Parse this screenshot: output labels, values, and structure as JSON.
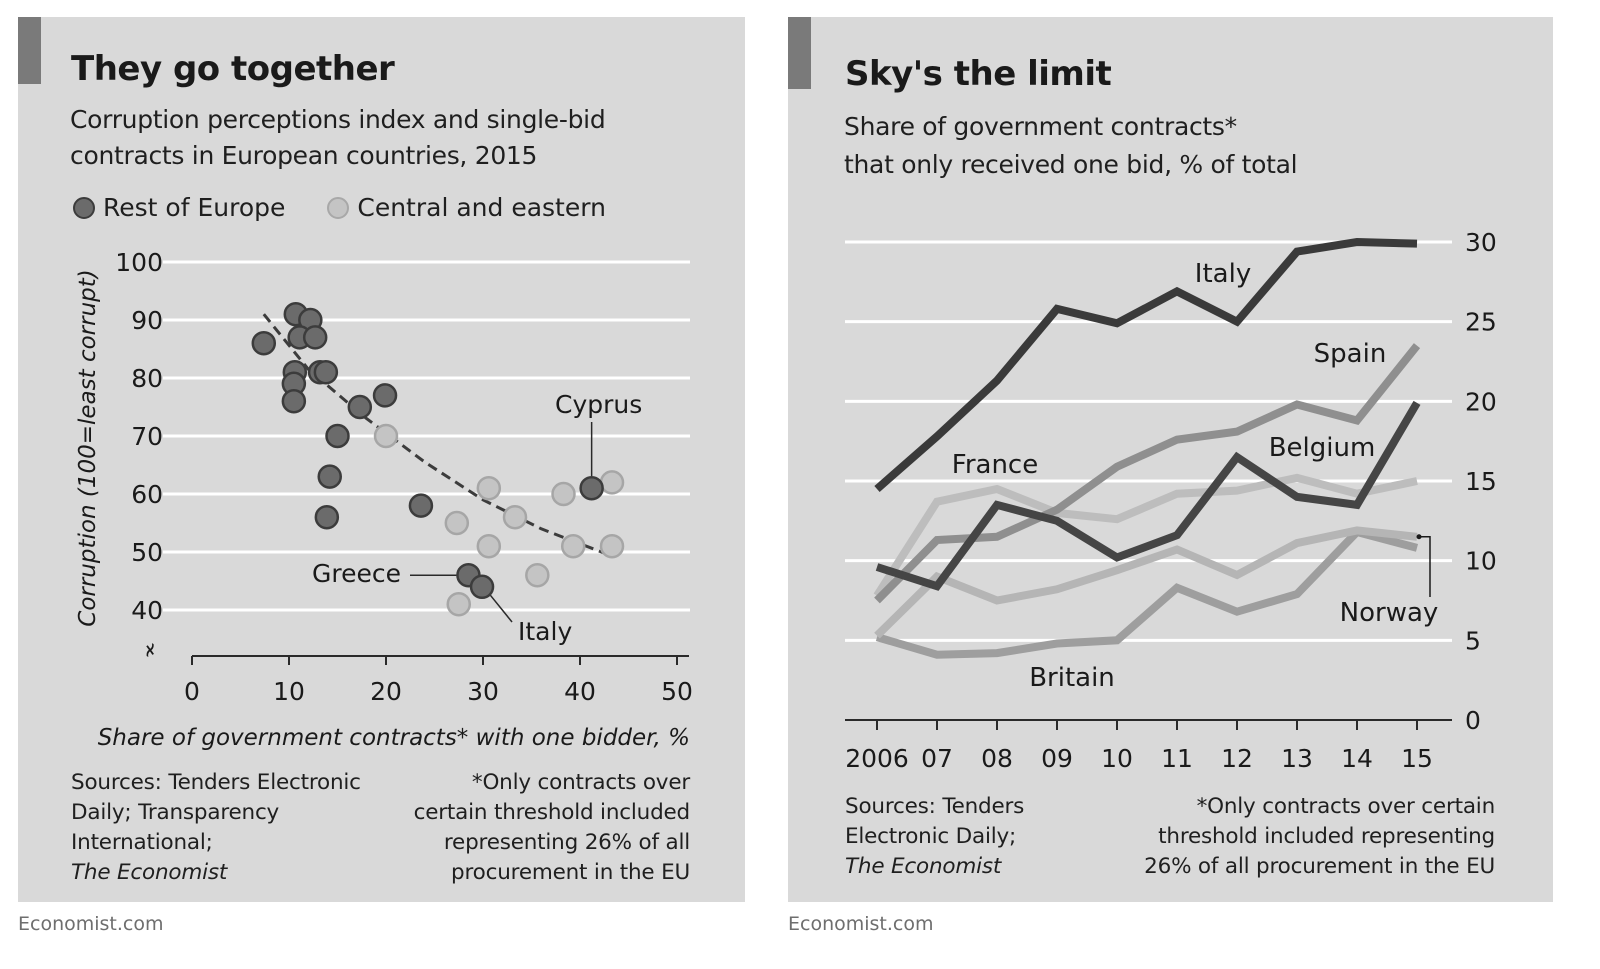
{
  "left": {
    "title": "They go together",
    "subtitle_lines": [
      "Corruption perceptions index and single-bid",
      "contracts in European countries, 2015"
    ],
    "legend": [
      {
        "label": "Rest of Europe",
        "color": "#6b6b6b"
      },
      {
        "label": "Central and eastern",
        "color": "#c4c4c4"
      }
    ],
    "sources_lines": [
      "Sources: Tenders Electronic",
      "Daily; Transparency",
      "International;"
    ],
    "sources_italic": "The Economist",
    "footnote_lines": [
      "*Only contracts over",
      "certain threshold included",
      "representing 26% of all",
      "procurement in the EU"
    ],
    "credit": "Economist.com"
  },
  "right": {
    "title": "Sky's the limit",
    "subtitle_lines": [
      "Share of government contracts*",
      "that only received one bid, % of total"
    ],
    "sources_lines": [
      "Sources: Tenders",
      "Electronic Daily;"
    ],
    "sources_italic": "The Economist",
    "footnote_lines": [
      "*Only contracts over certain",
      "threshold included representing",
      "26% of all procurement in the EU"
    ],
    "credit": "Economist.com"
  },
  "chart_data": [
    {
      "type": "scatter",
      "title": "They go together",
      "subtitle": "Corruption perceptions index and single-bid contracts in European countries, 2015",
      "xlabel": "Share of government contracts* with one bidder, %",
      "ylabel": "Corruption (100=least corrupt)",
      "xlim": [
        0,
        50
      ],
      "ylim": [
        35,
        100
      ],
      "x_ticks": [
        "0",
        "10",
        "20",
        "30",
        "40",
        "50"
      ],
      "y_ticks": [
        "100",
        "90",
        "80",
        "70",
        "60",
        "50",
        "40"
      ],
      "grid": "horizontal",
      "legend_position": "top-left",
      "series": [
        {
          "name": "Rest of Europe",
          "color": "#6b6b6b",
          "points": [
            [
              7.4,
              86
            ],
            [
              10.7,
              91
            ],
            [
              12.2,
              90
            ],
            [
              11.1,
              87
            ],
            [
              12.7,
              87
            ],
            [
              10.6,
              81
            ],
            [
              13.2,
              81
            ],
            [
              13.8,
              81
            ],
            [
              10.5,
              79
            ],
            [
              10.5,
              76
            ],
            [
              17.3,
              75
            ],
            [
              19.9,
              77
            ],
            [
              15.0,
              70
            ],
            [
              14.2,
              63
            ],
            [
              13.9,
              56
            ],
            [
              23.6,
              58
            ],
            [
              28.5,
              46
            ],
            [
              29.9,
              44
            ],
            [
              41.2,
              61
            ]
          ]
        },
        {
          "name": "Central and eastern",
          "color": "#c4c4c4",
          "points": [
            [
              20.0,
              70
            ],
            [
              30.6,
              61
            ],
            [
              27.3,
              55
            ],
            [
              33.3,
              56
            ],
            [
              30.6,
              51
            ],
            [
              35.6,
              46
            ],
            [
              27.5,
              41
            ],
            [
              38.3,
              60
            ],
            [
              39.3,
              51
            ],
            [
              43.3,
              62
            ],
            [
              43.3,
              51
            ]
          ]
        }
      ],
      "trendline": {
        "style": "dashed",
        "points": [
          [
            7.4,
            91
          ],
          [
            12,
            81.5
          ],
          [
            18,
            73
          ],
          [
            24,
            65.5
          ],
          [
            30,
            59
          ],
          [
            36,
            54
          ],
          [
            43,
            49.5
          ]
        ]
      },
      "annotations": [
        {
          "label": "Cyprus",
          "point": [
            41.2,
            61
          ]
        },
        {
          "label": "Greece",
          "point": [
            28.5,
            46
          ]
        },
        {
          "label": "Italy",
          "point": [
            29.9,
            44
          ]
        }
      ]
    },
    {
      "type": "line",
      "title": "Sky's the limit",
      "subtitle": "Share of government contracts* that only received one bid, % of total",
      "xlabel": "",
      "ylabel": "",
      "x": [
        2006,
        2007,
        2008,
        2009,
        2010,
        2011,
        2012,
        2013,
        2014,
        2015
      ],
      "x_tick_labels": [
        "2006",
        "07",
        "08",
        "09",
        "10",
        "11",
        "12",
        "13",
        "14",
        "15"
      ],
      "ylim": [
        0,
        30
      ],
      "y_ticks": [
        "30",
        "25",
        "20",
        "15",
        "10",
        "5",
        "0"
      ],
      "y_axis_position": "right",
      "grid": "horizontal",
      "series": [
        {
          "name": "Italy",
          "color": "#3a3a3a",
          "values": [
            14.5,
            17.8,
            21.3,
            25.8,
            24.9,
            26.9,
            25.0,
            29.4,
            30.0,
            29.9
          ]
        },
        {
          "name": "Spain",
          "color": "#8f8f8f",
          "values": [
            7.5,
            11.3,
            11.5,
            13.2,
            15.9,
            17.6,
            18.1,
            19.8,
            18.8,
            23.5
          ]
        },
        {
          "name": "Belgium",
          "color": "#454545",
          "values": [
            9.6,
            8.4,
            13.5,
            12.5,
            10.2,
            11.6,
            16.5,
            14.0,
            13.5,
            19.9
          ]
        },
        {
          "name": "France",
          "color": "#bdbdbd",
          "values": [
            7.8,
            13.7,
            14.5,
            13.0,
            12.6,
            14.2,
            14.4,
            15.2,
            14.2,
            15.0
          ]
        },
        {
          "name": "Norway",
          "color": "#b5b5b5",
          "values": [
            5.3,
            9.0,
            7.5,
            8.2,
            9.4,
            10.7,
            9.1,
            11.1,
            11.9,
            11.5
          ]
        },
        {
          "name": "Britain",
          "color": "#9e9e9e",
          "values": [
            5.2,
            4.1,
            4.2,
            4.8,
            5.0,
            8.3,
            6.8,
            7.9,
            11.8,
            10.8
          ]
        }
      ],
      "annotations": [
        {
          "label": "Italy",
          "series": "Italy"
        },
        {
          "label": "Spain",
          "series": "Spain"
        },
        {
          "label": "Belgium",
          "series": "Belgium"
        },
        {
          "label": "France",
          "series": "France"
        },
        {
          "label": "Norway",
          "series": "Norway"
        },
        {
          "label": "Britain",
          "series": "Britain"
        }
      ]
    }
  ]
}
